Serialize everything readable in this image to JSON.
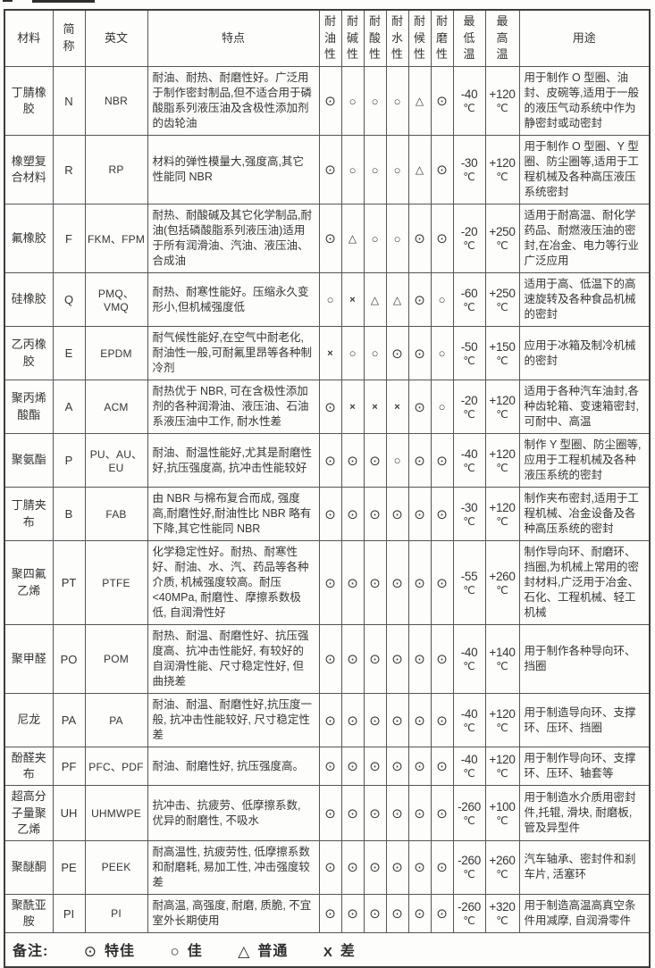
{
  "table": {
    "headers": {
      "material": "材料",
      "abbr": "简称",
      "english": "英文",
      "features": "特点",
      "perf": [
        "耐油性",
        "耐碱性",
        "耐酸性",
        "耐水性",
        "耐候性",
        "耐磨性"
      ],
      "min_temp": "最低温",
      "max_temp": "最高温",
      "usage": "用途"
    },
    "temp_unit": "℃",
    "rows": [
      {
        "material": "丁腈橡胶",
        "abbr": "N",
        "english": "NBR",
        "features": "耐油、耐热、耐磨性好。广泛用于制作密封制品,但不适合用于磷酸脂系列液压油及含极性添加剂的齿轮油",
        "perf": [
          "⊙",
          "○",
          "○",
          "○",
          "△",
          "⊙"
        ],
        "min": "-40",
        "max": "+120",
        "usage": "用于制作 O 型圈、油封、皮碗等,适用于一般的液压气动系统中作为静密封或动密封"
      },
      {
        "material": "橡塑复合材料",
        "abbr": "R",
        "english": "RP",
        "features": "材料的弹性模量大,强度高,其它性能同 NBR",
        "perf": [
          "⊙",
          "○",
          "○",
          "○",
          "△",
          "⊙"
        ],
        "min": "-30",
        "max": "+120",
        "usage": "用于制作 O 型圈、Y 型圈、防尘圈等,适用于工程机械及各种高压液压系统密封"
      },
      {
        "material": "氟橡胶",
        "abbr": "F",
        "english": "FKM、FPM",
        "features": "耐热、耐酸碱及其它化学制品,耐油(包括磷酸脂系列液压油)适用于所有润滑油、汽油、液压油、合成油",
        "perf": [
          "⊙",
          "△",
          "○",
          "○",
          "⊙",
          "⊙"
        ],
        "min": "-20",
        "max": "+250",
        "usage": "适用于耐高温、耐化学药品、耐燃液压油的密封,在冶金、电力等行业广泛应用"
      },
      {
        "material": "硅橡胶",
        "abbr": "Q",
        "english": "PMQ、VMQ",
        "features": "耐热、耐寒性能好。压缩永久变形小,但机械强度低",
        "perf": [
          "○",
          "×",
          "△",
          "△",
          "⊙",
          "○"
        ],
        "min": "-60",
        "max": "+250",
        "usage": "适用于高、低温下的高速旋转及各种食品机械的密封"
      },
      {
        "material": "乙丙橡胶",
        "abbr": "E",
        "english": "EPDM",
        "features": "耐气候性能好,在空气中耐老化,耐油性一般,可耐氟里昂等各种制冷剂",
        "perf": [
          "×",
          "○",
          "○",
          "⊙",
          "⊙",
          "○"
        ],
        "min": "-50",
        "max": "+150",
        "usage": "应用于冰箱及制冷机械的密封"
      },
      {
        "material": "聚丙烯酸酯",
        "abbr": "A",
        "english": "ACM",
        "features": "耐热优于 NBR, 可在含极性添加剂的各种润滑油、液压油、石油系液压油中工作, 耐水性差",
        "perf": [
          "⊙",
          "×",
          "×",
          "×",
          "⊙",
          "○"
        ],
        "min": "-20",
        "max": "+120",
        "usage": "适用于各种汽车油封,各种齿轮箱、变速箱密封, 可耐中、高温"
      },
      {
        "material": "聚氨酯",
        "abbr": "P",
        "english": "PU、AU、EU",
        "features": "耐油、耐温性能好,尤其是耐磨性好,抗压强度高, 抗冲击性能较好",
        "perf": [
          "⊙",
          "⊙",
          "⊙",
          "○",
          "⊙",
          "⊙"
        ],
        "min": "-40",
        "max": "+120",
        "usage": "制作 Y 型圈、防尘圈等,应用于工程机械及各种液压系统的密封"
      },
      {
        "material": "丁腈夹布",
        "abbr": "B",
        "english": "FAB",
        "features": "由 NBR 与棉布复合而成, 强度高,耐磨性好,耐油性比 NBR 略有下降,其它性能同 NBR",
        "perf": [
          "⊙",
          "⊙",
          "⊙",
          "⊙",
          "⊙",
          "⊙"
        ],
        "min": "-30",
        "max": "+120",
        "usage": "制作夹布密封,适用于工程机械、冶金设备及各种高压系统的密封"
      },
      {
        "material": "聚四氟乙烯",
        "abbr": "PT",
        "english": "PTFE",
        "features": "化学稳定性好。耐热、耐寒性好、耐油、水、汽、药品等各种介质, 机械强度较高。耐压<40MPa, 耐磨性、摩擦系数极低, 自润滑性好",
        "perf": [
          "⊙",
          "⊙",
          "⊙",
          "⊙",
          "⊙",
          "⊙"
        ],
        "min": "-55",
        "max": "+260",
        "usage": "制作导向环、耐磨环、挡圈,为机械上常用的密封材料,广泛用于冶金、石化、工程机械、轻工机械"
      },
      {
        "material": "聚甲醛",
        "abbr": "PO",
        "english": "POM",
        "features": "耐热、耐温、耐磨性好、抗压强度高、抗冲击性能好, 有较好的自润滑性能、尺寸稳定性好, 但曲挠差",
        "perf": [
          "⊙",
          "⊙",
          "⊙",
          "⊙",
          "⊙",
          "⊙"
        ],
        "min": "-40",
        "max": "+140",
        "usage": "用于制作各种导向环、挡圈"
      },
      {
        "material": "尼龙",
        "abbr": "PA",
        "english": "PA",
        "features": "耐油、耐温、耐磨性好,抗压度一般, 抗冲击性能较好, 尺寸稳定性差",
        "perf": [
          "⊙",
          "⊙",
          "⊙",
          "⊙",
          "⊙",
          "⊙"
        ],
        "min": "-40",
        "max": "+120",
        "usage": "用于制造导向环、支撑环、压环、挡圈"
      },
      {
        "material": "酚醛夹布",
        "abbr": "PF",
        "english": "PFC、PDF",
        "features": "耐油、耐磨性好, 抗压强度高。",
        "perf": [
          "⊙",
          "⊙",
          "⊙",
          "⊙",
          "⊙",
          "⊙"
        ],
        "min": "-40",
        "max": "+120",
        "usage": "用于制作导向环、支撑环、压环、轴套等"
      },
      {
        "material": "超高分子量聚乙烯",
        "abbr": "UH",
        "english": "UHMWPE",
        "features": "抗冲击、抗疲劳、低摩擦系数, 优异的耐磨性, 不吸水",
        "perf": [
          "⊙",
          "⊙",
          "⊙",
          "⊙",
          "⊙",
          "⊙"
        ],
        "min": "-260",
        "max": "+100",
        "usage": "用于制造水介质用密封件,托辊, 滑块, 耐磨板, 管及异型件"
      },
      {
        "material": "聚醚酮",
        "abbr": "PE",
        "english": "PEEK",
        "features": "耐高温性, 抗疲劳性, 低摩擦系数和耐磨耗, 易加工性, 冲击强度较差",
        "perf": [
          "⊙",
          "⊙",
          "⊙",
          "⊙",
          "⊙",
          "⊙"
        ],
        "min": "-260",
        "max": "+260",
        "usage": "汽车轴承、密封件和刹车片, 活塞环"
      },
      {
        "material": "聚酰亚胺",
        "abbr": "PI",
        "english": "PI",
        "features": "耐高温, 高强度, 耐磨, 质脆, 不宜室外长期使用",
        "perf": [
          "⊙",
          "⊙",
          "⊙",
          "⊙",
          "⊙",
          "⊙"
        ],
        "min": "-260",
        "max": "+320",
        "usage": "用于制造高温高真空条件用减摩, 自润滑零件"
      }
    ],
    "footnote": {
      "label": "备注:",
      "items": [
        {
          "symbol": "⊙",
          "label": "特佳"
        },
        {
          "symbol": "○",
          "label": "佳"
        },
        {
          "symbol": "△",
          "label": "普通"
        },
        {
          "symbol": "X",
          "label": "差"
        }
      ]
    }
  }
}
